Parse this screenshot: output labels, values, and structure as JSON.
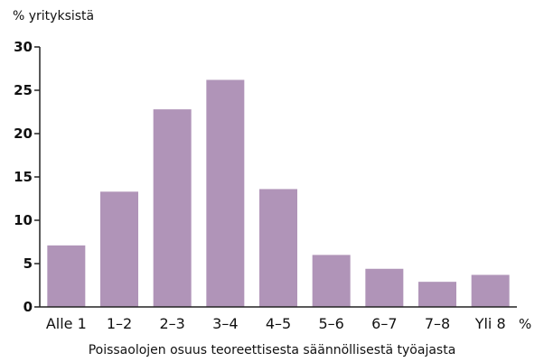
{
  "chart_data": {
    "type": "bar",
    "y_unit_label": "% yrityksistä",
    "x_unit_label": "%",
    "xlabel": "Poissaolojen osuus teoreettisesta säännöllisestä työajasta",
    "categories": [
      "Alle 1",
      "1–2",
      "2–3",
      "3–4",
      "4–5",
      "5–6",
      "6–7",
      "7–8",
      "Yli 8"
    ],
    "values": [
      7.1,
      13.3,
      22.8,
      26.2,
      13.6,
      6.0,
      4.4,
      2.9,
      3.7
    ],
    "ylim": [
      0,
      30
    ],
    "yticks": [
      0,
      5,
      10,
      15,
      20,
      25,
      30
    ],
    "grid": false,
    "bar_color": "#b094b8",
    "axis_color": "#222222"
  }
}
